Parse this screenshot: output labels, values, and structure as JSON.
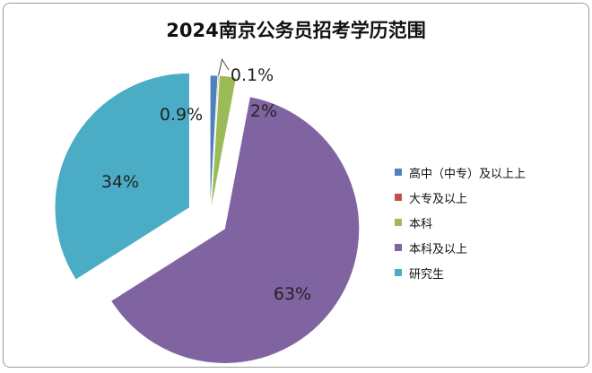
{
  "chart_data": {
    "type": "pie",
    "title": "2024南京公务员招考学历范围",
    "slices": [
      {
        "name": "高中（中专）及以上上",
        "value": 0.9,
        "label": "0.9%",
        "color": "#4f81bd"
      },
      {
        "name": "大专及以上",
        "value": 0.1,
        "label": "0.1%",
        "color": "#c0504d"
      },
      {
        "name": "本科",
        "value": 2,
        "label": "2%",
        "color": "#9bbb59"
      },
      {
        "name": "本科及以上",
        "value": 63,
        "label": "63%",
        "color": "#8064a2"
      },
      {
        "name": "研究生",
        "value": 34,
        "label": "34%",
        "color": "#4bacc6"
      }
    ],
    "legend_position": "right"
  }
}
